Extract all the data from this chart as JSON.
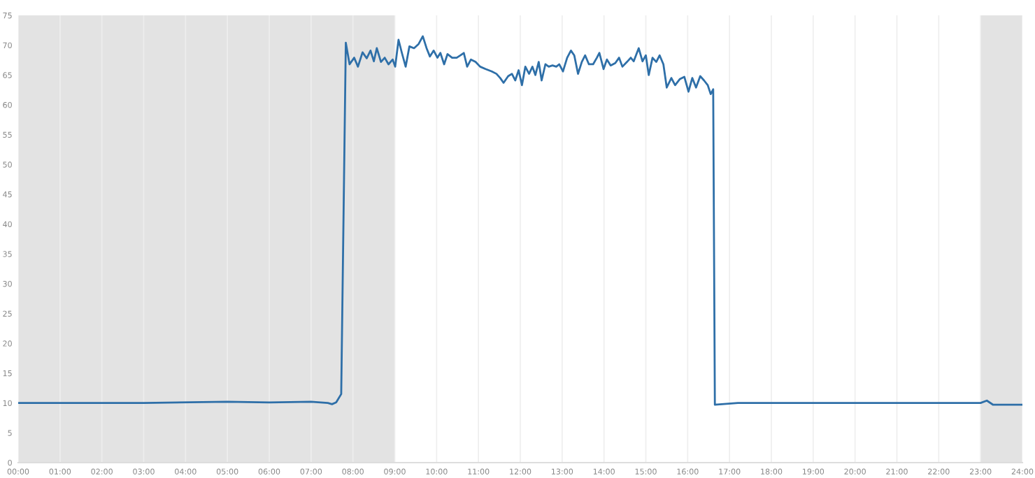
{
  "chart_data": {
    "type": "line",
    "x": [
      0,
      3,
      5,
      6,
      7,
      7.4,
      7.5,
      7.6,
      7.72,
      7.83,
      7.92,
      8.03,
      8.12,
      8.23,
      8.33,
      8.42,
      8.5,
      8.57,
      8.67,
      8.76,
      8.85,
      8.95,
      9.01,
      9.09,
      9.17,
      9.26,
      9.35,
      9.46,
      9.57,
      9.67,
      9.76,
      9.84,
      9.93,
      10.02,
      10.09,
      10.18,
      10.26,
      10.37,
      10.48,
      10.57,
      10.65,
      10.73,
      10.82,
      10.93,
      11.04,
      11.17,
      11.32,
      11.43,
      11.52,
      11.6,
      11.71,
      11.8,
      11.88,
      11.96,
      12.04,
      12.12,
      12.21,
      12.29,
      12.36,
      12.44,
      12.51,
      12.6,
      12.68,
      12.77,
      12.86,
      12.93,
      13.02,
      13.12,
      13.21,
      13.29,
      13.38,
      13.47,
      13.55,
      13.64,
      13.74,
      13.83,
      13.89,
      13.99,
      14.07,
      14.16,
      14.27,
      14.36,
      14.44,
      14.55,
      14.64,
      14.71,
      14.83,
      14.92,
      15.0,
      15.07,
      15.16,
      15.25,
      15.33,
      15.42,
      15.5,
      15.61,
      15.7,
      15.81,
      15.92,
      16.02,
      16.11,
      16.2,
      16.3,
      16.39,
      16.48,
      16.55,
      16.61,
      16.65,
      17.2,
      20,
      23,
      23.15,
      23.3,
      24
    ],
    "series": [
      {
        "color": "#2e6fa8",
        "values": [
          10.0,
          10.0,
          10.2,
          10.1,
          10.2,
          10.0,
          9.8,
          10.1,
          11.5,
          70.4,
          66.8,
          67.9,
          66.4,
          68.8,
          67.8,
          69.1,
          67.3,
          69.5,
          67.2,
          67.9,
          66.8,
          67.6,
          66.4,
          70.9,
          68.7,
          66.4,
          69.8,
          69.5,
          70.2,
          71.5,
          69.5,
          68.1,
          69.1,
          67.9,
          68.7,
          66.8,
          68.5,
          67.9,
          67.9,
          68.3,
          68.7,
          66.4,
          67.6,
          67.2,
          66.4,
          66.0,
          65.6,
          65.2,
          64.5,
          63.7,
          64.8,
          65.2,
          64.1,
          65.8,
          63.3,
          66.4,
          65.2,
          66.4,
          65.0,
          67.2,
          64.1,
          66.8,
          66.4,
          66.6,
          66.4,
          66.8,
          65.6,
          67.9,
          69.1,
          68.3,
          65.2,
          67.2,
          68.3,
          66.8,
          66.8,
          67.9,
          68.7,
          66.0,
          67.6,
          66.6,
          67.0,
          67.9,
          66.4,
          67.2,
          67.9,
          67.3,
          69.5,
          67.3,
          68.3,
          65.0,
          67.9,
          67.2,
          68.3,
          66.8,
          62.9,
          64.5,
          63.3,
          64.3,
          64.7,
          62.2,
          64.5,
          62.9,
          64.8,
          64.1,
          63.3,
          61.8,
          62.6,
          9.7,
          10.0,
          10.0,
          10.0,
          10.4,
          9.7,
          9.7
        ]
      }
    ],
    "xlim": [
      0,
      24
    ],
    "xticks": [
      {
        "value": 0,
        "label": "00:00"
      },
      {
        "value": 1,
        "label": "01:00"
      },
      {
        "value": 2,
        "label": "02:00"
      },
      {
        "value": 3,
        "label": "03:00"
      },
      {
        "value": 4,
        "label": "04:00"
      },
      {
        "value": 5,
        "label": "05:00"
      },
      {
        "value": 6,
        "label": "06:00"
      },
      {
        "value": 7,
        "label": "07:00"
      },
      {
        "value": 8,
        "label": "08:00"
      },
      {
        "value": 9,
        "label": "09:00"
      },
      {
        "value": 10,
        "label": "10:00"
      },
      {
        "value": 11,
        "label": "11:00"
      },
      {
        "value": 12,
        "label": "12:00"
      },
      {
        "value": 13,
        "label": "13:00"
      },
      {
        "value": 14,
        "label": "14:00"
      },
      {
        "value": 15,
        "label": "15:00"
      },
      {
        "value": 16,
        "label": "16:00"
      },
      {
        "value": 17,
        "label": "17:00"
      },
      {
        "value": 18,
        "label": "18:00"
      },
      {
        "value": 19,
        "label": "19:00"
      },
      {
        "value": 20,
        "label": "20:00"
      },
      {
        "value": 21,
        "label": "21:00"
      },
      {
        "value": 22,
        "label": "22:00"
      },
      {
        "value": 23,
        "label": "23:00"
      },
      {
        "value": 24,
        "label": "24:00"
      }
    ],
    "ylim": [
      0,
      75
    ],
    "yticks": [
      0,
      5,
      10,
      15,
      20,
      25,
      30,
      35,
      40,
      45,
      50,
      55,
      60,
      65,
      70,
      75
    ],
    "grid": "x",
    "bands": [
      {
        "axis": "x",
        "from": 0,
        "to": 9,
        "color": "#e3e3e3"
      },
      {
        "axis": "x",
        "from": 23,
        "to": 24,
        "color": "#e3e3e3"
      }
    ]
  }
}
